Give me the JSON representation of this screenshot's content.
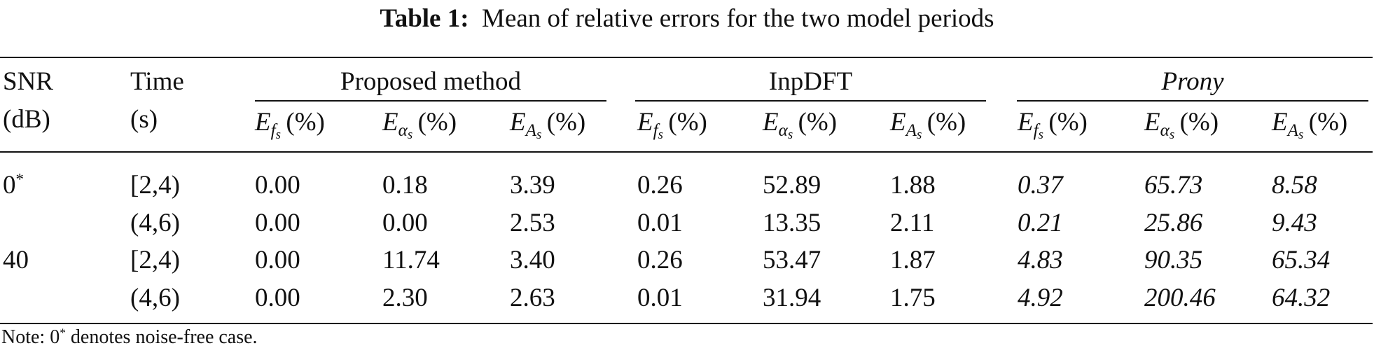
{
  "header": {
    "table_label": "Table 1:",
    "title": "Mean of relative errors for the two model periods"
  },
  "table": {
    "col_headers": [
      [
        "SNR",
        "(dB)"
      ],
      [
        "Time",
        "(s)"
      ]
    ],
    "groups": [
      "Proposed method",
      "InpDFT",
      "Prony"
    ],
    "subheaders": [
      {
        "symbol": "E",
        "sub": "f",
        "subsub": "s",
        "unit": "(%)"
      },
      {
        "symbol": "E",
        "sub": "α",
        "subsub": "s",
        "unit": "(%)"
      },
      {
        "symbol": "E",
        "sub": "A",
        "subsub": "s",
        "unit": "(%)"
      },
      {
        "symbol": "E",
        "sub": "f",
        "subsub": "s",
        "unit": "(%)"
      },
      {
        "symbol": "E",
        "sub": "α",
        "subsub": "s",
        "unit": "(%)"
      },
      {
        "symbol": "E",
        "sub": "A",
        "subsub": "s",
        "unit": "(%)"
      },
      {
        "symbol": "E",
        "sub": "f",
        "subsub": "s",
        "unit": "(%)"
      },
      {
        "symbol": "E",
        "sub": "α",
        "subsub": "s",
        "unit": "(%)"
      },
      {
        "symbol": "E",
        "sub": "A",
        "subsub": "s",
        "unit": "(%)"
      }
    ],
    "rows": [
      {
        "snr": "0",
        "snr_mark": "*",
        "time": "[2,4)",
        "values": [
          "0.00",
          "0.18",
          "3.39",
          "0.26",
          "52.89",
          "1.88",
          "0.37",
          "65.73",
          "8.58"
        ]
      },
      {
        "snr": null,
        "snr_mark": null,
        "time": "(4,6)",
        "values": [
          "0.00",
          "0.00",
          "2.53",
          "0.01",
          "13.35",
          "2.11",
          "0.21",
          "25.86",
          "9.43"
        ]
      },
      {
        "snr": "40",
        "snr_mark": null,
        "time": "[2,4)",
        "values": [
          "0.00",
          "11.74",
          "3.40",
          "0.26",
          "53.47",
          "1.87",
          "4.83",
          "90.35",
          "65.34"
        ]
      },
      {
        "snr": null,
        "snr_mark": null,
        "time": "(4,6)",
        "values": [
          "0.00",
          "2.30",
          "2.63",
          "0.01",
          "31.94",
          "1.75",
          "4.92",
          "200.46",
          "64.32"
        ]
      }
    ]
  },
  "note": {
    "prefix": "Note: 0",
    "mark": "*",
    "text": " denotes noise-free case."
  }
}
